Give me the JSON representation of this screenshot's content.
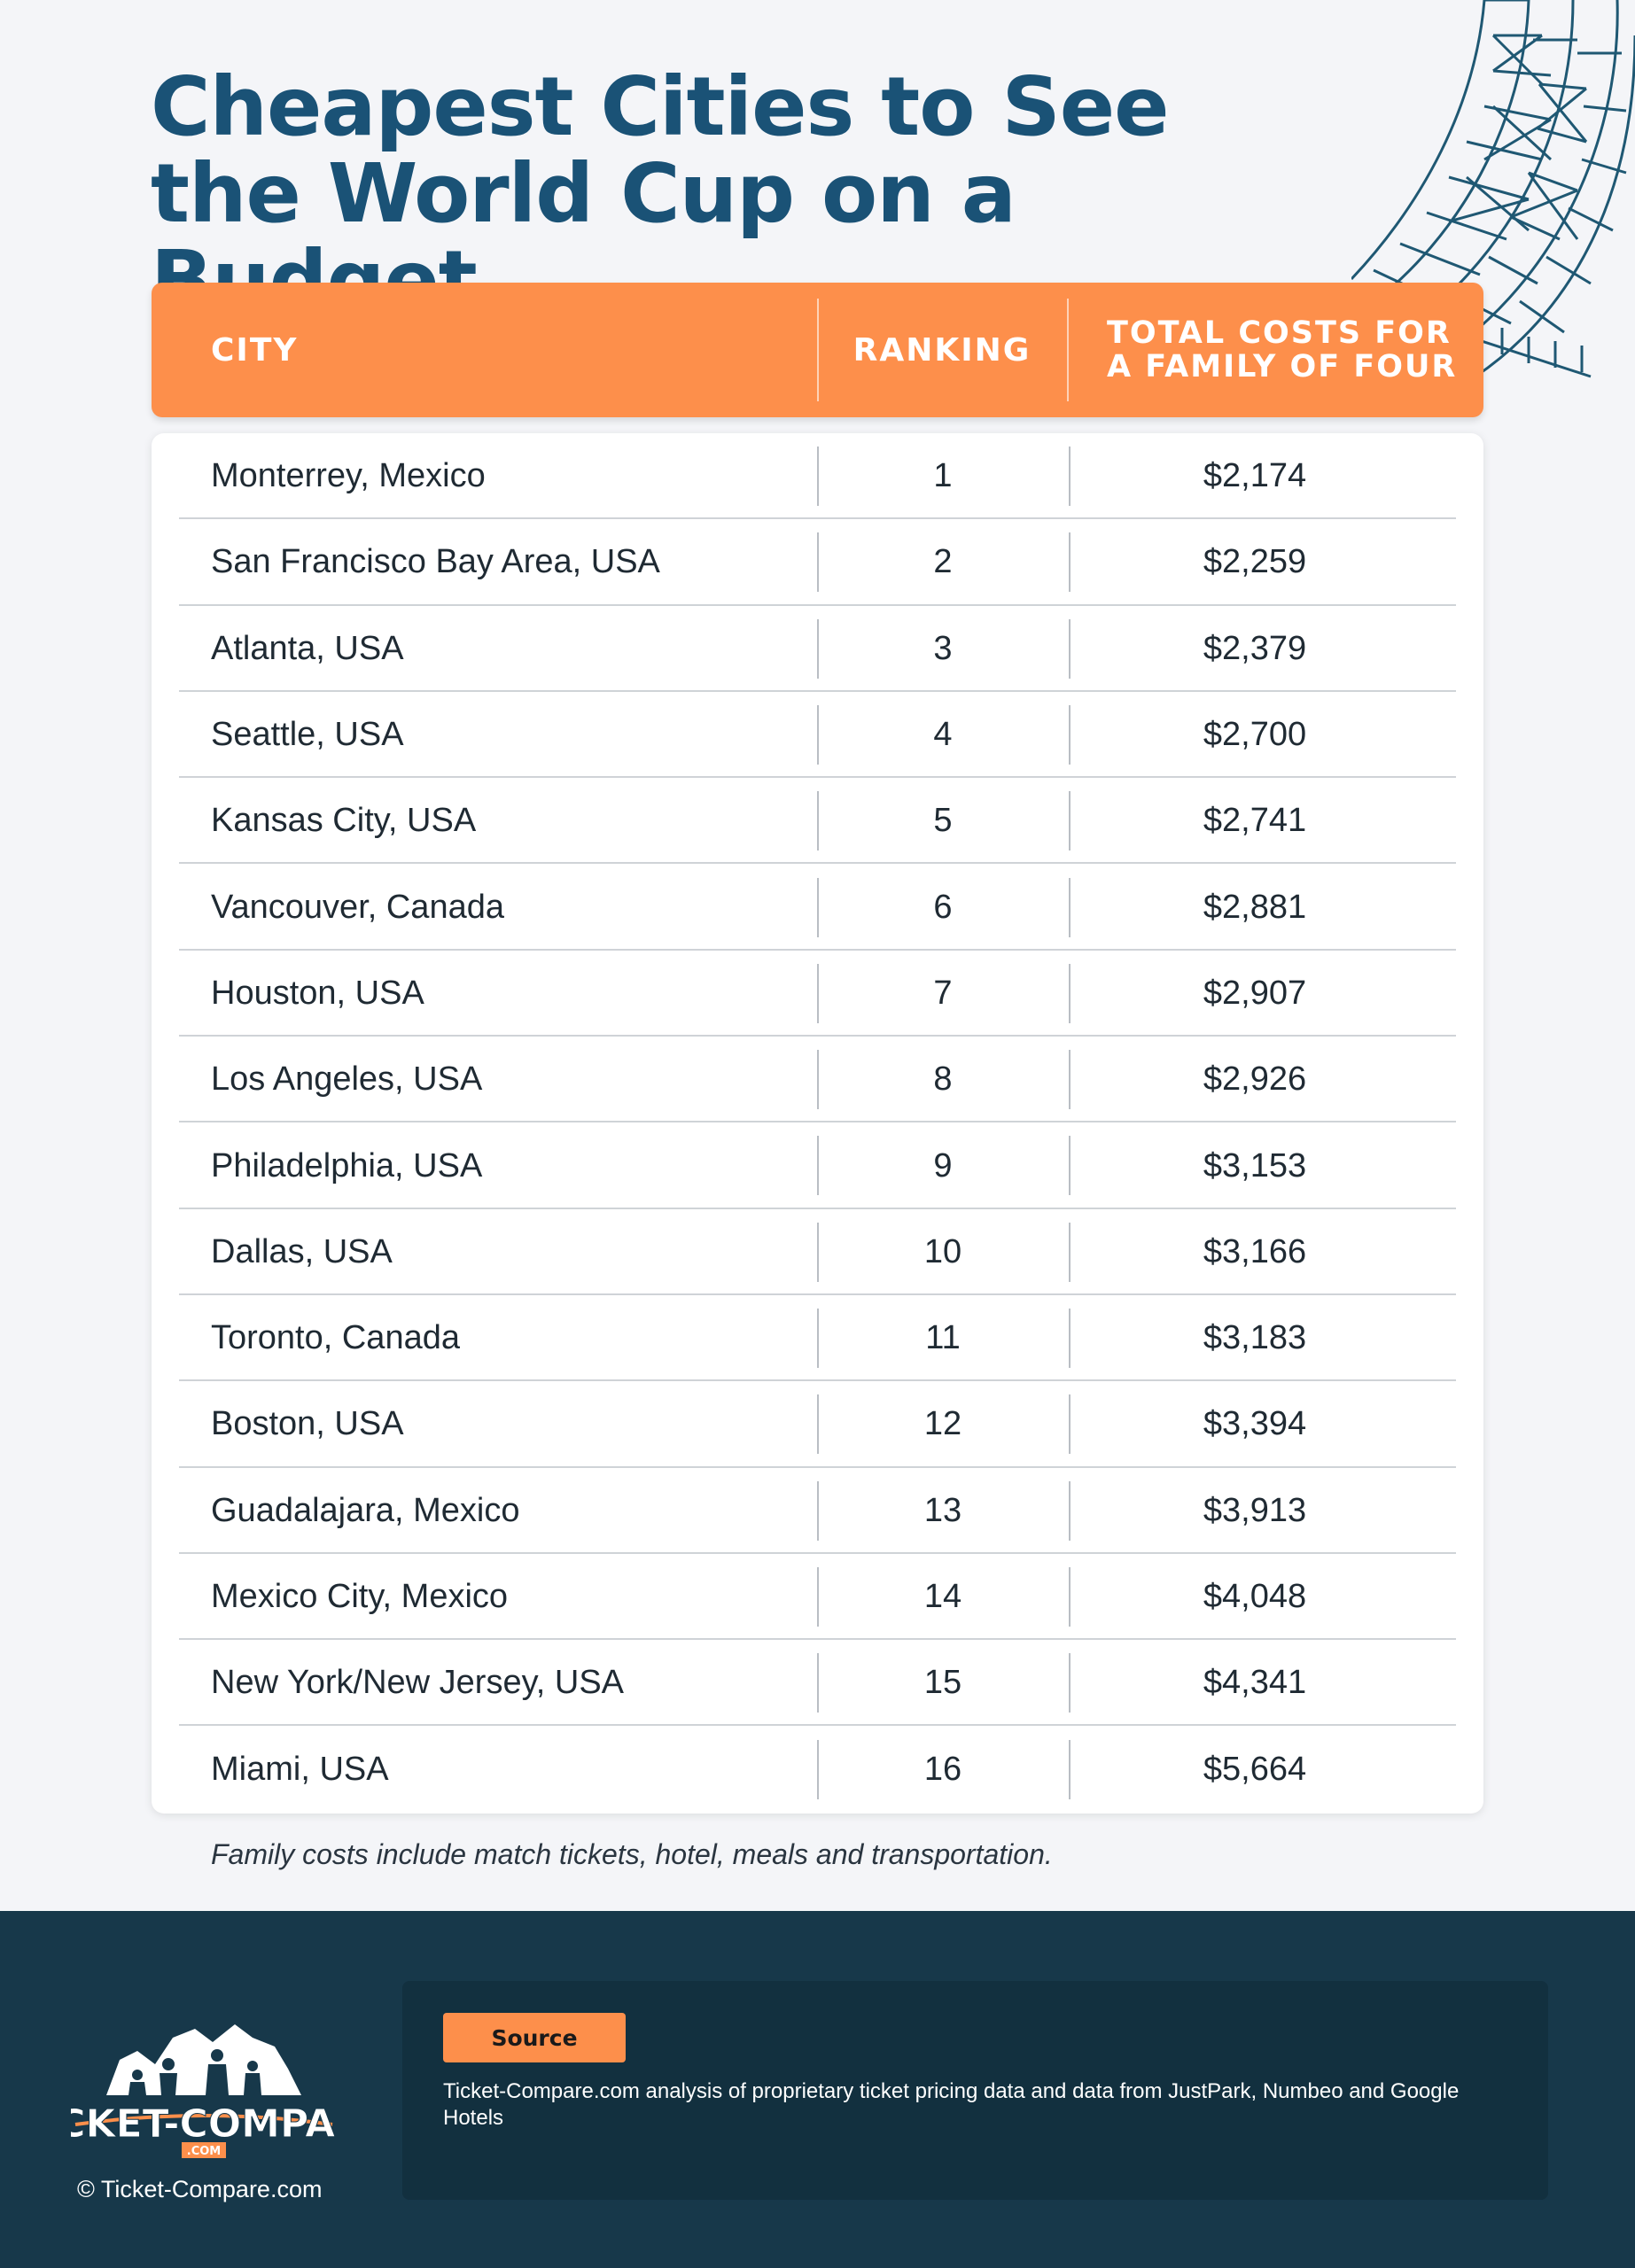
{
  "title": "Cheapest Cities to See the World Cup on a Budget",
  "table": {
    "headers": {
      "city": "CITY",
      "ranking": "RANKING",
      "cost": "TOTAL COSTS FOR A FAMILY OF FOUR"
    },
    "rows": [
      {
        "city": "Monterrey, Mexico",
        "ranking": "1",
        "cost": "$2,174"
      },
      {
        "city": "San Francisco Bay Area, USA",
        "ranking": "2",
        "cost": "$2,259"
      },
      {
        "city": "Atlanta, USA",
        "ranking": "3",
        "cost": "$2,379"
      },
      {
        "city": "Seattle, USA",
        "ranking": "4",
        "cost": "$2,700"
      },
      {
        "city": "Kansas City, USA",
        "ranking": "5",
        "cost": "$2,741"
      },
      {
        "city": "Vancouver, Canada",
        "ranking": "6",
        "cost": "$2,881"
      },
      {
        "city": "Houston, USA",
        "ranking": "7",
        "cost": "$2,907"
      },
      {
        "city": "Los Angeles, USA",
        "ranking": "8",
        "cost": "$2,926"
      },
      {
        "city": "Philadelphia, USA",
        "ranking": "9",
        "cost": "$3,153"
      },
      {
        "city": "Dallas, USA",
        "ranking": "10",
        "cost": "$3,166"
      },
      {
        "city": "Toronto, Canada",
        "ranking": "11",
        "cost": "$3,183"
      },
      {
        "city": "Boston, USA",
        "ranking": "12",
        "cost": "$3,394"
      },
      {
        "city": "Guadalajara, Mexico",
        "ranking": "13",
        "cost": "$3,913"
      },
      {
        "city": "Mexico City, Mexico",
        "ranking": "14",
        "cost": "$4,048"
      },
      {
        "city": "New York/New Jersey, USA",
        "ranking": "15",
        "cost": "$4,341"
      },
      {
        "city": "Miami, USA",
        "ranking": "16",
        "cost": "$5,664"
      }
    ]
  },
  "note": "Family costs include match tickets, hotel, meals and transportation.",
  "footer": {
    "logo_text": "TICKET-COMPARE",
    "logo_subtext": ".COM",
    "copyright": "© Ticket-Compare.com",
    "source_label": "Source",
    "source_text": "Ticket-Compare.com analysis of proprietary ticket pricing data and data from JustPark, Numbeo and Google Hotels"
  },
  "colors": {
    "title": "#1a5276",
    "accent_orange": "#fd8f4b",
    "footer_bg": "#17384a",
    "decoration_icon": "stadium-line-art"
  }
}
